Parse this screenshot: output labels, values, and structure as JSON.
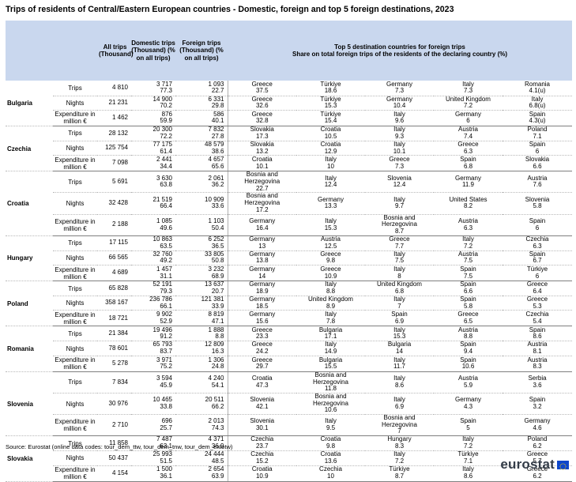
{
  "title": "Trips of residents of Central/Eastern European countries - Domestic, foreign and top 5 foreign destinations, 2023",
  "headers": {
    "all": "All trips (Thousand)",
    "domestic": "Domestic trips (Thousand) (% on all trips)",
    "foreign": "Foreign trips (Thousand) (% on all trips)",
    "top5_line1": "Top 5 destination countries for foreign trips",
    "top5_line2": "Share on total foreign trips of the residents of the declaring country (%)"
  },
  "indicators": [
    "Trips",
    "Nights",
    "Expenditure in million €"
  ],
  "countries": [
    {
      "name": "Bulgaria",
      "rows": [
        {
          "all": "4 810",
          "dom": [
            "3 717",
            "77.3"
          ],
          "for": [
            "1 093",
            "22.7"
          ],
          "dest": [
            [
              "Greece",
              "37.5"
            ],
            [
              "Türkiye",
              "18.6"
            ],
            [
              "Germany",
              "7.3"
            ],
            [
              "Italy",
              "7.3"
            ],
            [
              "Romania",
              "4.1(u)"
            ]
          ]
        },
        {
          "all": "21 231",
          "dom": [
            "14 900",
            "70.2"
          ],
          "for": [
            "6 331",
            "29.8"
          ],
          "dest": [
            [
              "Greece",
              "32.6"
            ],
            [
              "Türkiye",
              "15.3"
            ],
            [
              "Germany",
              "10.4"
            ],
            [
              "United Kingdom",
              "7.2"
            ],
            [
              "Italy",
              "6.8(u)"
            ]
          ]
        },
        {
          "all": "1 462",
          "dom": [
            "876",
            "59.9"
          ],
          "for": [
            "586",
            "40.1"
          ],
          "dest": [
            [
              "Greece",
              "32.8"
            ],
            [
              "Türkiye",
              "15.4"
            ],
            [
              "Italy",
              "9.6"
            ],
            [
              "Germany",
              "6"
            ],
            [
              "Spain",
              "4.3(u)"
            ]
          ]
        }
      ]
    },
    {
      "name": "Czechia",
      "rows": [
        {
          "all": "28 132",
          "dom": [
            "20 300",
            "72.2"
          ],
          "for": [
            "7 832",
            "27.8"
          ],
          "dest": [
            [
              "Slovakia",
              "17.3"
            ],
            [
              "Croatia",
              "10.5"
            ],
            [
              "Italy",
              "9.3"
            ],
            [
              "Austria",
              "7.4"
            ],
            [
              "Poland",
              "7.1"
            ]
          ]
        },
        {
          "all": "125 754",
          "dom": [
            "77 175",
            "61.4"
          ],
          "for": [
            "48 579",
            "38.6"
          ],
          "dest": [
            [
              "Slovakia",
              "13.2"
            ],
            [
              "Croatia",
              "12.9"
            ],
            [
              "Italy",
              "10.1"
            ],
            [
              "Greece",
              "6.3"
            ],
            [
              "Spain",
              "6"
            ]
          ]
        },
        {
          "all": "7 098",
          "dom": [
            "2 441",
            "34.4"
          ],
          "for": [
            "4 657",
            "65.6"
          ],
          "dest": [
            [
              "Croatia",
              "10.1"
            ],
            [
              "Italy",
              "10"
            ],
            [
              "Greece",
              "7.3"
            ],
            [
              "Spain",
              "6.8"
            ],
            [
              "Slovakia",
              "6.6"
            ]
          ]
        }
      ]
    },
    {
      "name": "Croatia",
      "rows": [
        {
          "all": "5 691",
          "dom": [
            "3 630",
            "63.8"
          ],
          "for": [
            "2 061",
            "36.2"
          ],
          "dest": [
            [
              "Bosnia and Herzegovina",
              "22.7"
            ],
            [
              "Italy",
              "12.4"
            ],
            [
              "Slovenia",
              "12.4"
            ],
            [
              "Germany",
              "11.9"
            ],
            [
              "Austria",
              "7.6"
            ]
          ]
        },
        {
          "all": "32 428",
          "dom": [
            "21 519",
            "66.4"
          ],
          "for": [
            "10 909",
            "33.6"
          ],
          "dest": [
            [
              "Bosnia and Herzegovina",
              "17.2"
            ],
            [
              "Germany",
              "13.3"
            ],
            [
              "Italy",
              "9.7"
            ],
            [
              "United States",
              "8.2"
            ],
            [
              "Slovenia",
              "5.8"
            ]
          ]
        },
        {
          "all": "2 188",
          "dom": [
            "1 085",
            "49.6"
          ],
          "for": [
            "1 103",
            "50.4"
          ],
          "dest": [
            [
              "Germany",
              "16.4"
            ],
            [
              "Italy",
              "15.3"
            ],
            [
              "Bosnia and Herzegovina",
              "8.7"
            ],
            [
              "Austria",
              "6.3"
            ],
            [
              "Spain",
              "6"
            ]
          ]
        }
      ]
    },
    {
      "name": "Hungary",
      "rows": [
        {
          "all": "17 115",
          "dom": [
            "10 863",
            "63.5"
          ],
          "for": [
            "6 252",
            "36.5"
          ],
          "dest": [
            [
              "Germany",
              "13"
            ],
            [
              "Austria",
              "12.5"
            ],
            [
              "Greece",
              "7.7"
            ],
            [
              "Italy",
              "7.2"
            ],
            [
              "Czechia",
              "6.3"
            ]
          ]
        },
        {
          "all": "66 565",
          "dom": [
            "32 760",
            "49.2"
          ],
          "for": [
            "33 805",
            "50.8"
          ],
          "dest": [
            [
              "Germany",
              "13.8"
            ],
            [
              "Greece",
              "9.8"
            ],
            [
              "Italy",
              "7.5"
            ],
            [
              "Austria",
              "7.5"
            ],
            [
              "Spain",
              "6.7"
            ]
          ]
        },
        {
          "all": "4 689",
          "dom": [
            "1 457",
            "31.1"
          ],
          "for": [
            "3 232",
            "68.9"
          ],
          "dest": [
            [
              "Germany",
              "14"
            ],
            [
              "Greece",
              "10.9"
            ],
            [
              "Italy",
              "8"
            ],
            [
              "Spain",
              "7.5"
            ],
            [
              "Türkiye",
              "6"
            ]
          ]
        }
      ]
    },
    {
      "name": "Poland",
      "rows": [
        {
          "all": "65 828",
          "dom": [
            "52 191",
            "79.3"
          ],
          "for": [
            "13 637",
            "20.7"
          ],
          "dest": [
            [
              "Germany",
              "18.9"
            ],
            [
              "Italy",
              "8.8"
            ],
            [
              "United Kingdom",
              "6.8"
            ],
            [
              "Spain",
              "6.6"
            ],
            [
              "Greece",
              "6.4"
            ]
          ]
        },
        {
          "all": "358 167",
          "dom": [
            "236 786",
            "66.1"
          ],
          "for": [
            "121 381",
            "33.9"
          ],
          "dest": [
            [
              "Germany",
              "18.5"
            ],
            [
              "United Kingdom",
              "8.9"
            ],
            [
              "Italy",
              "7"
            ],
            [
              "Spain",
              "5.8"
            ],
            [
              "Greece",
              "5.3"
            ]
          ]
        },
        {
          "all": "18 721",
          "dom": [
            "9 902",
            "52.9"
          ],
          "for": [
            "8 819",
            "47.1"
          ],
          "dest": [
            [
              "Germany",
              "15.6"
            ],
            [
              "Italy",
              "7.8"
            ],
            [
              "Spain",
              "6.9"
            ],
            [
              "Greece",
              "6.5"
            ],
            [
              "Czechia",
              "5.4"
            ]
          ]
        }
      ]
    },
    {
      "name": "Romania",
      "rows": [
        {
          "all": "21 384",
          "dom": [
            "19 496",
            "91.2"
          ],
          "for": [
            "1 888",
            "8.8"
          ],
          "dest": [
            [
              "Greece",
              "23.3"
            ],
            [
              "Bulgaria",
              "17.1"
            ],
            [
              "Italy",
              "15.3"
            ],
            [
              "Austria",
              "8.8"
            ],
            [
              "Spain",
              "8.6"
            ]
          ]
        },
        {
          "all": "78 601",
          "dom": [
            "65 793",
            "83.7"
          ],
          "for": [
            "12 809",
            "16.3"
          ],
          "dest": [
            [
              "Greece",
              "24.2"
            ],
            [
              "Italy",
              "14.9"
            ],
            [
              "Bulgaria",
              "14"
            ],
            [
              "Spain",
              "9.4"
            ],
            [
              "Austria",
              "8.1"
            ]
          ]
        },
        {
          "all": "5 278",
          "dom": [
            "3 971",
            "75.2"
          ],
          "for": [
            "1 306",
            "24.8"
          ],
          "dest": [
            [
              "Greece",
              "29.7"
            ],
            [
              "Bulgaria",
              "15.5"
            ],
            [
              "Italy",
              "11.7"
            ],
            [
              "Spain",
              "10.6"
            ],
            [
              "Austria",
              "8.3"
            ]
          ]
        }
      ]
    },
    {
      "name": "Slovenia",
      "rows": [
        {
          "all": "7 834",
          "dom": [
            "3 594",
            "45.9"
          ],
          "for": [
            "4 240",
            "54.1"
          ],
          "dest": [
            [
              "Croatia",
              "47.3"
            ],
            [
              "Bosnia and Herzegovina",
              "11.8"
            ],
            [
              "Italy",
              "8.6"
            ],
            [
              "Austria",
              "5.9"
            ],
            [
              "Serbia",
              "3.6"
            ]
          ]
        },
        {
          "all": "30 976",
          "dom": [
            "10 465",
            "33.8"
          ],
          "for": [
            "20 511",
            "66.2"
          ],
          "dest": [
            [
              "Slovenia",
              "42.1"
            ],
            [
              "Bosnia and Herzegovina",
              "10.6"
            ],
            [
              "Italy",
              "6.9"
            ],
            [
              "Germany",
              "4.3"
            ],
            [
              "Spain",
              "3.2"
            ]
          ]
        },
        {
          "all": "2 710",
          "dom": [
            "696",
            "25.7"
          ],
          "for": [
            "2 013",
            "74.3"
          ],
          "dest": [
            [
              "Slovenia",
              "30.1"
            ],
            [
              "Italy",
              "9.5"
            ],
            [
              "Bosnia and Herzegovina",
              "7"
            ],
            [
              "Spain",
              "5"
            ],
            [
              "Germany",
              "4.6"
            ]
          ]
        }
      ]
    },
    {
      "name": "Slovakia",
      "rows": [
        {
          "all": "11 858",
          "dom": [
            "7 487",
            "63.1"
          ],
          "for": [
            "4 371",
            "36.9"
          ],
          "dest": [
            [
              "Czechia",
              "23.7"
            ],
            [
              "Croatia",
              "9.8"
            ],
            [
              "Hungary",
              "8.3"
            ],
            [
              "Italy",
              "7.2"
            ],
            [
              "Poland",
              "6.2"
            ]
          ]
        },
        {
          "all": "50 437",
          "dom": [
            "25 993",
            "51.5"
          ],
          "for": [
            "24 444",
            "48.5"
          ],
          "dest": [
            [
              "Czechia",
              "15.2"
            ],
            [
              "Croatia",
              "13.6"
            ],
            [
              "Italy",
              "7.2"
            ],
            [
              "Türkiye",
              "7.1"
            ],
            [
              "Greece",
              "5.7"
            ]
          ]
        },
        {
          "all": "4 154",
          "dom": [
            "1 500",
            "36.1"
          ],
          "for": [
            "2 654",
            "63.9"
          ],
          "dest": [
            [
              "Croatia",
              "10.9"
            ],
            [
              "Czechia",
              "10"
            ],
            [
              "Türkiye",
              "8.7"
            ],
            [
              "Italy",
              "8.6"
            ],
            [
              "Greece",
              "6.2"
            ]
          ]
        }
      ]
    }
  ],
  "source": "Source:  Eurostat (online data codes: tour_dem_ttw, tour_dem_tnw, tour_dem_extotw)",
  "logo": {
    "text": "eurostat",
    "flag_color": "#0e47cb",
    "star_color": "#ffd200"
  }
}
